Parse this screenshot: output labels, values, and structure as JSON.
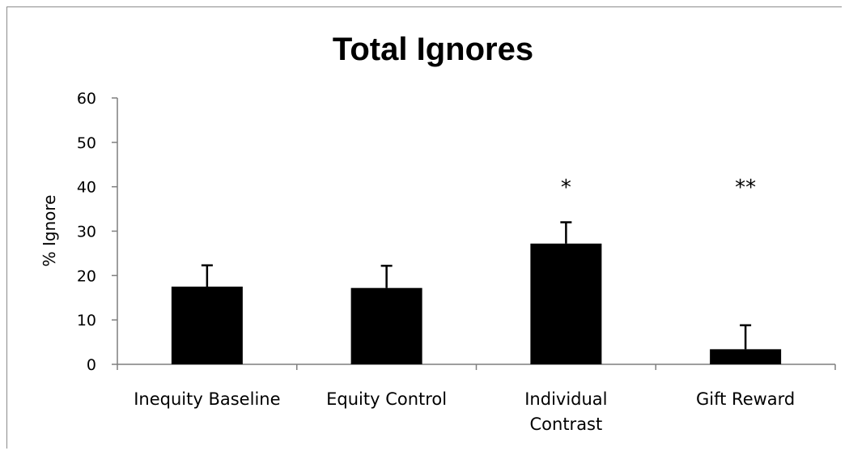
{
  "chart_data": {
    "type": "bar",
    "title": "Total Ignores",
    "xlabel": "",
    "ylabel": "% Ignore",
    "ylim": [
      0,
      60
    ],
    "yticks": [
      0,
      10,
      20,
      30,
      40,
      50,
      60
    ],
    "grid": false,
    "legend": "none",
    "categories": [
      [
        "Inequity Baseline"
      ],
      [
        "Equity Control"
      ],
      [
        "Individual",
        "Contrast"
      ],
      [
        "Gift Reward"
      ]
    ],
    "values": [
      17.5,
      17.2,
      27.2,
      3.4
    ],
    "error_upper": [
      22.3,
      22.2,
      32.0,
      8.8
    ],
    "significance": [
      "",
      "",
      "*",
      "**"
    ],
    "bar_color": "#000000"
  }
}
